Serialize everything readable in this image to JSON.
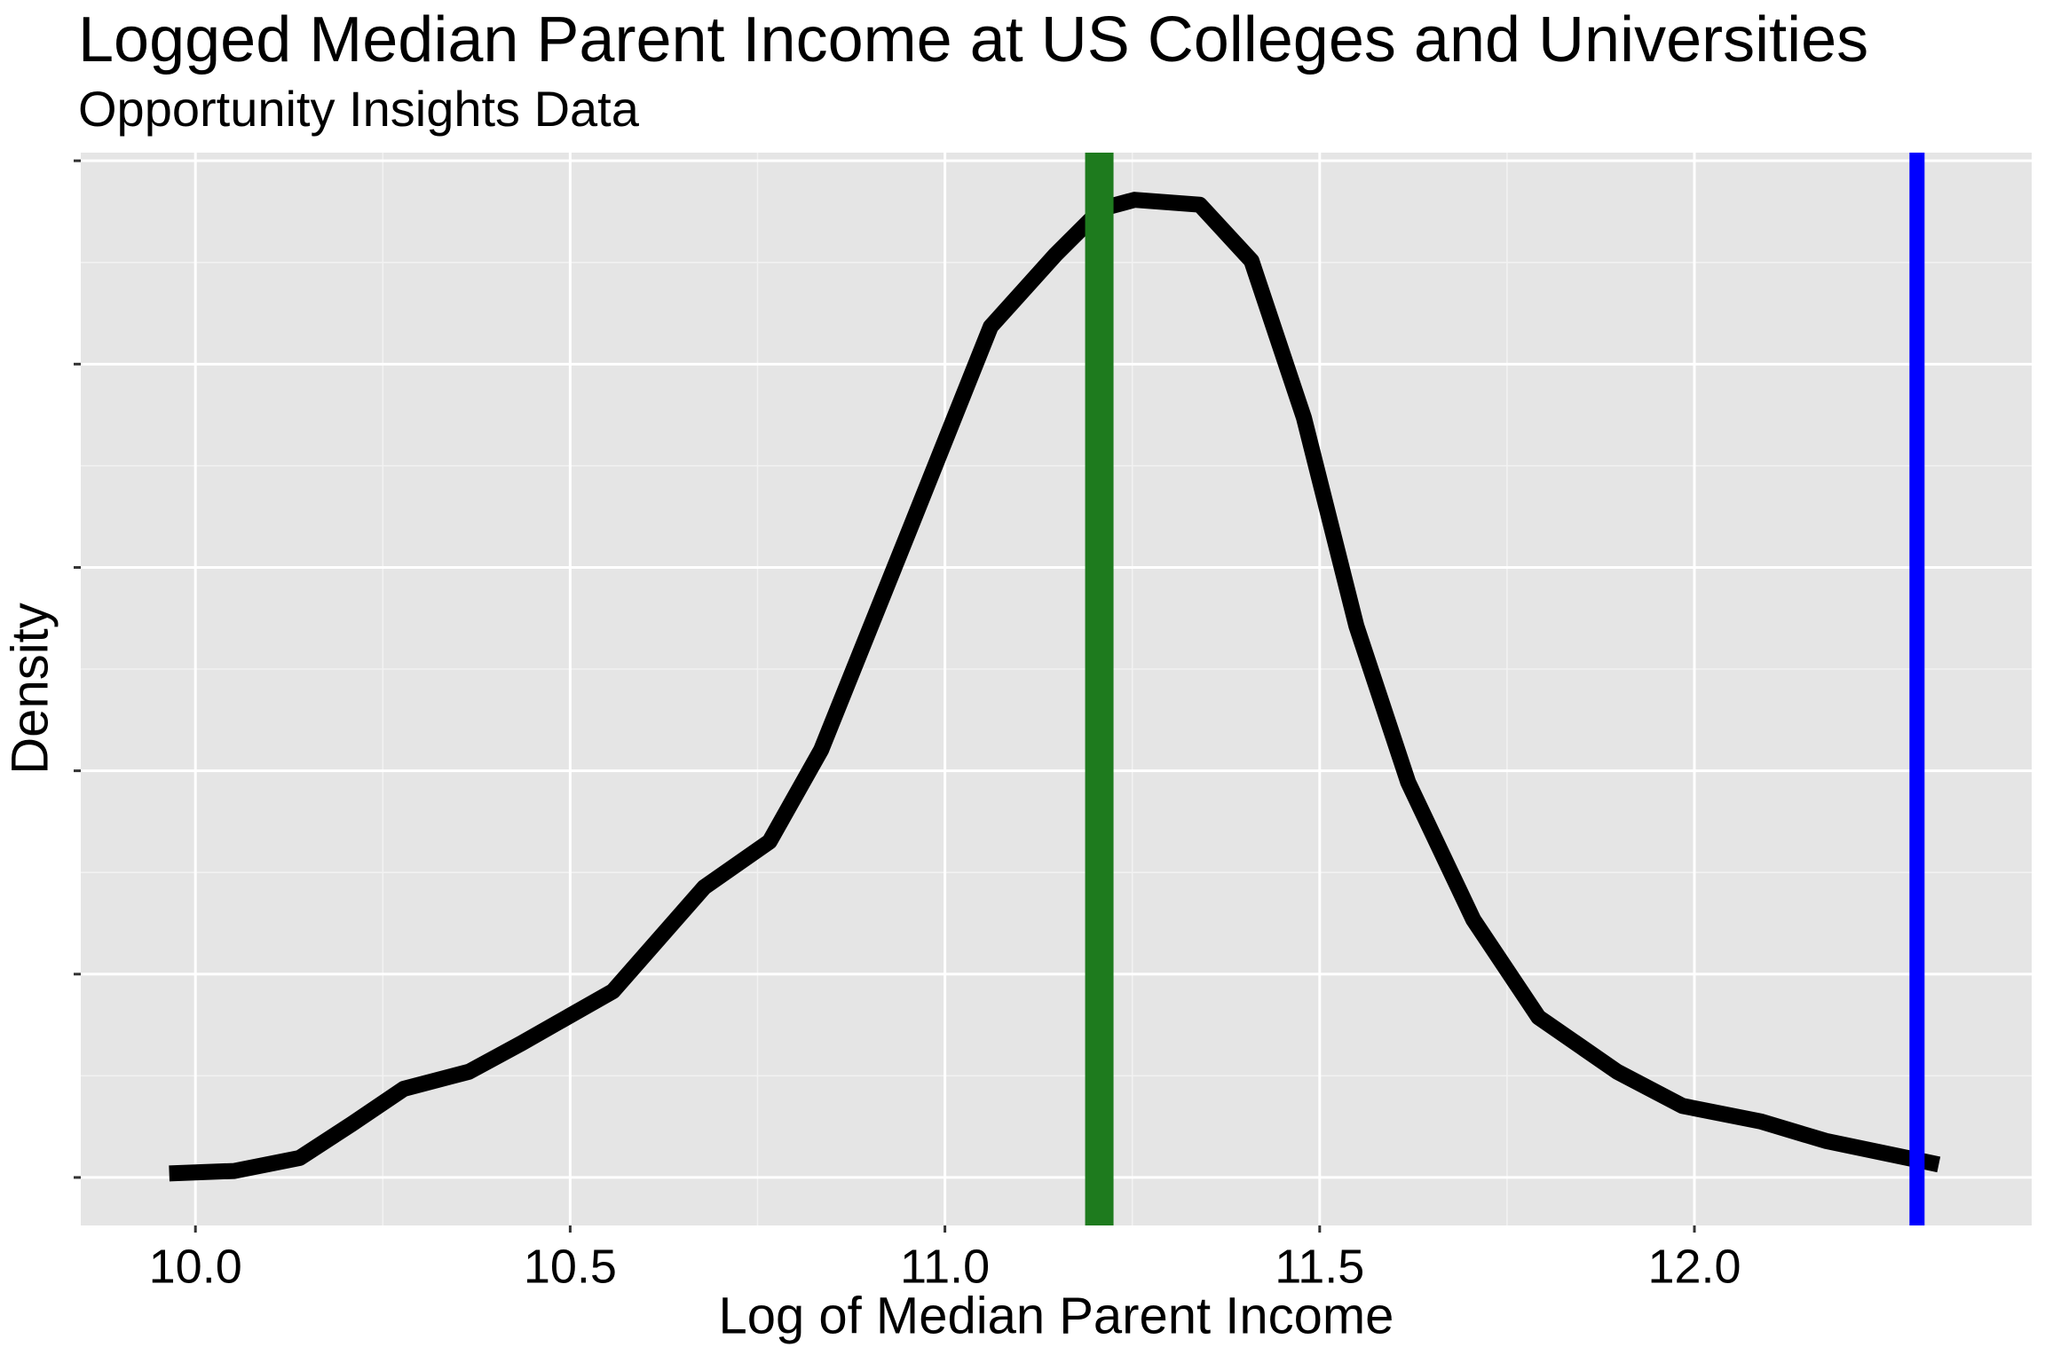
{
  "chart_data": {
    "type": "line",
    "title": "Logged Median Parent Income at US Colleges and Universities",
    "subtitle": "Opportunity Insights Data",
    "x_label": "Log of Median Parent Income",
    "y_label": "Density",
    "x": [
      9.965,
      10.052,
      10.139,
      10.209,
      10.278,
      10.365,
      10.435,
      10.557,
      10.679,
      10.766,
      10.835,
      10.957,
      11.061,
      11.148,
      11.209,
      11.253,
      11.34,
      11.409,
      11.479,
      11.549,
      11.618,
      11.705,
      11.792,
      11.897,
      11.984,
      12.088,
      12.175,
      12.326
    ],
    "series": [
      {
        "color": "#000000",
        "values": [
          0.005,
          0.008,
          0.024,
          0.066,
          0.109,
          0.13,
          0.165,
          0.229,
          0.357,
          0.413,
          0.526,
          0.806,
          1.046,
          1.135,
          1.191,
          1.202,
          1.196,
          1.127,
          0.934,
          0.678,
          0.486,
          0.317,
          0.197,
          0.13,
          0.088,
          0.069,
          0.045,
          0.016
        ]
      }
    ],
    "vlines": [
      {
        "x": 11.206,
        "color": "#1e7b1e"
      },
      {
        "x": 12.297,
        "color": "#0000ff"
      }
    ],
    "xlim": [
      9.847,
      12.45
    ],
    "ylim": [
      -0.059,
      1.26
    ],
    "xticks": [
      {
        "value": 10,
        "label": "10.0"
      },
      10.5,
      {
        "value": 11,
        "label": "11.0"
      },
      11.5,
      {
        "value": 12,
        "label": "12.0"
      }
    ],
    "yticks": [
      0,
      0.25,
      0.5,
      0.75,
      1.0,
      1.25
    ],
    "grid": true
  }
}
